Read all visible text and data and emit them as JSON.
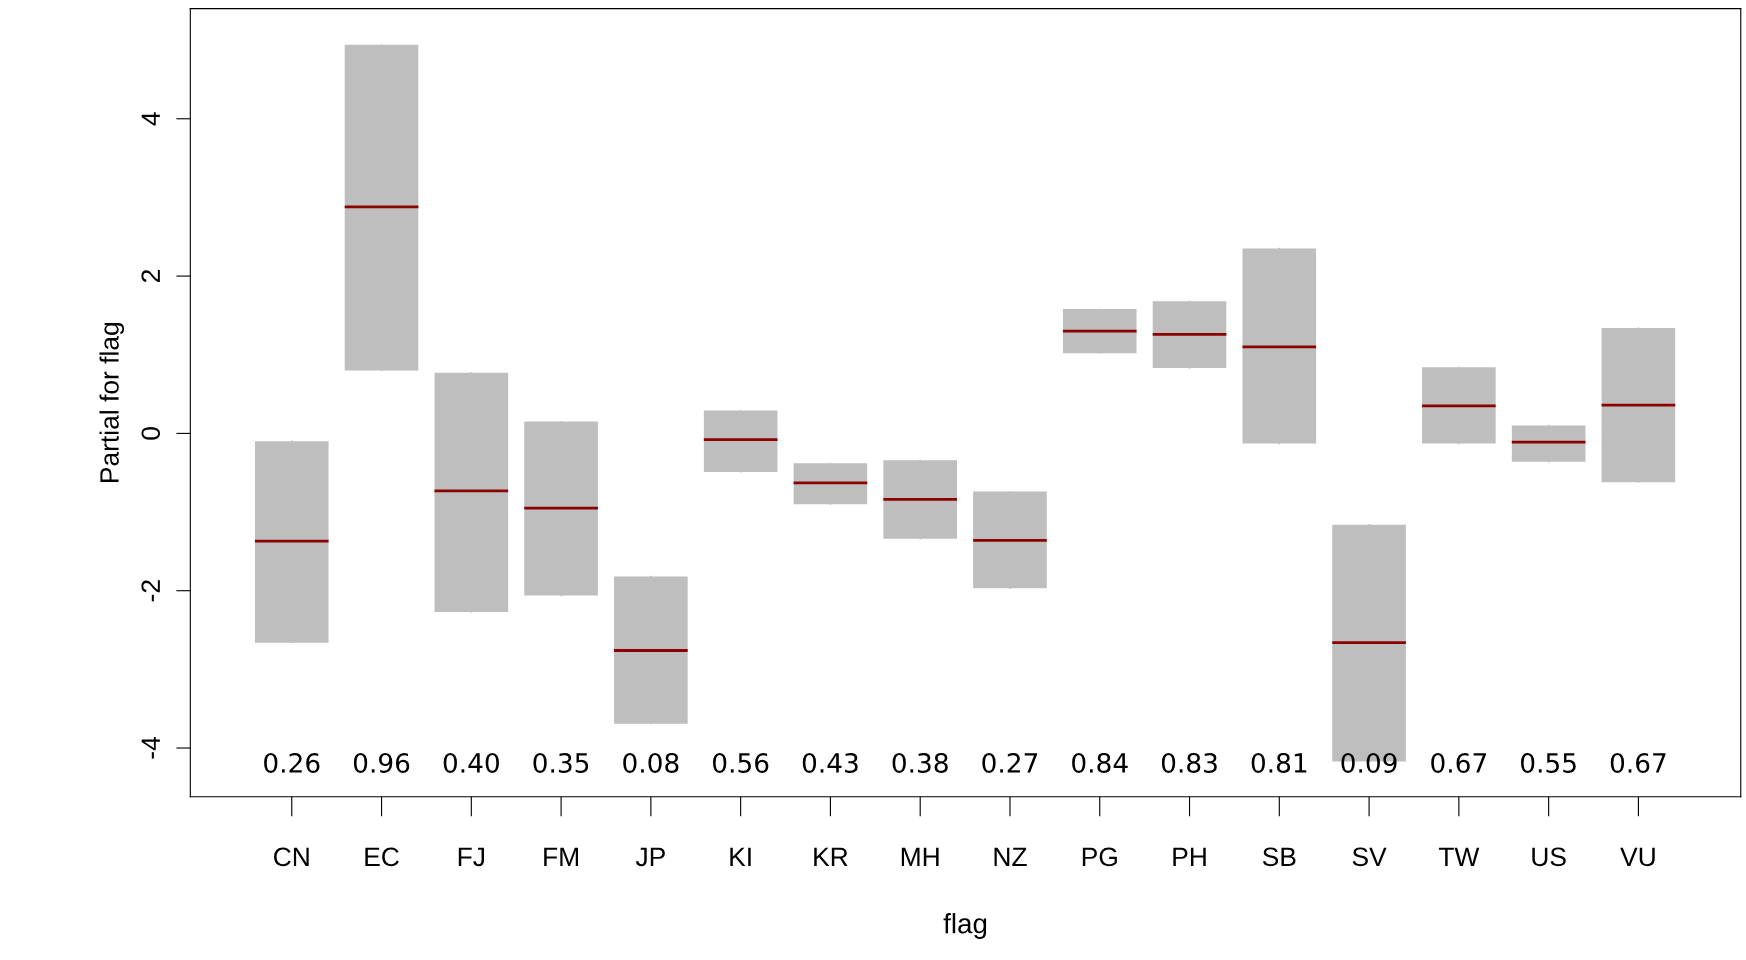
{
  "chart_data": {
    "type": "box",
    "xlabel": "flag",
    "ylabel": "Partial for flag",
    "categories": [
      "CN",
      "EC",
      "FJ",
      "FM",
      "JP",
      "KI",
      "KR",
      "MH",
      "NZ",
      "PG",
      "PH",
      "SB",
      "SV",
      "TW",
      "US",
      "VU"
    ],
    "series": [
      {
        "color": "#bebebe",
        "boxes": [
          {
            "low": -2.66,
            "q1": -2.66,
            "median": -1.37,
            "q3": -0.1,
            "high": -0.1
          },
          {
            "low": 0.8,
            "q1": 0.8,
            "median": 2.88,
            "q3": 4.94,
            "high": 4.94
          },
          {
            "low": -2.27,
            "q1": -2.27,
            "median": -0.73,
            "q3": 0.77,
            "high": 0.77
          },
          {
            "low": -2.06,
            "q1": -2.06,
            "median": -0.95,
            "q3": 0.15,
            "high": 0.15
          },
          {
            "low": -3.69,
            "q1": -3.69,
            "median": -2.76,
            "q3": -1.82,
            "high": -1.82
          },
          {
            "low": -0.49,
            "q1": -0.49,
            "median": -0.08,
            "q3": 0.29,
            "high": 0.29
          },
          {
            "low": -0.9,
            "q1": -0.9,
            "median": -0.63,
            "q3": -0.38,
            "high": -0.38
          },
          {
            "low": -1.34,
            "q1": -1.34,
            "median": -0.84,
            "q3": -0.34,
            "high": -0.34
          },
          {
            "low": -1.97,
            "q1": -1.97,
            "median": -1.36,
            "q3": -0.74,
            "high": -0.74
          },
          {
            "low": 1.02,
            "q1": 1.02,
            "median": 1.3,
            "q3": 1.58,
            "high": 1.58
          },
          {
            "low": 0.83,
            "q1": 0.83,
            "median": 1.26,
            "q3": 1.68,
            "high": 1.68
          },
          {
            "low": -0.13,
            "q1": -0.13,
            "median": 1.1,
            "q3": 2.35,
            "high": 2.35
          },
          {
            "low": -4.17,
            "q1": -4.17,
            "median": -2.66,
            "q3": -1.16,
            "high": -1.16
          },
          {
            "low": -0.13,
            "q1": -0.13,
            "median": 0.35,
            "q3": 0.84,
            "high": 0.84
          },
          {
            "low": -0.36,
            "q1": -0.36,
            "median": -0.11,
            "q3": 0.1,
            "high": 0.1
          },
          {
            "low": -0.62,
            "q1": -0.62,
            "median": 0.36,
            "q3": 1.34,
            "high": 1.34
          }
        ]
      }
    ],
    "ylim": [
      -4.62,
      5.4
    ],
    "yticks": [
      -4,
      -2,
      0,
      2,
      4
    ],
    "grid": false,
    "annotations": [
      "0.26",
      "0.96",
      "0.40",
      "0.35",
      "0.08",
      "0.56",
      "0.43",
      "0.38",
      "0.27",
      "0.84",
      "0.83",
      "0.81",
      "0.09",
      "0.67",
      "0.55",
      "0.67"
    ]
  }
}
